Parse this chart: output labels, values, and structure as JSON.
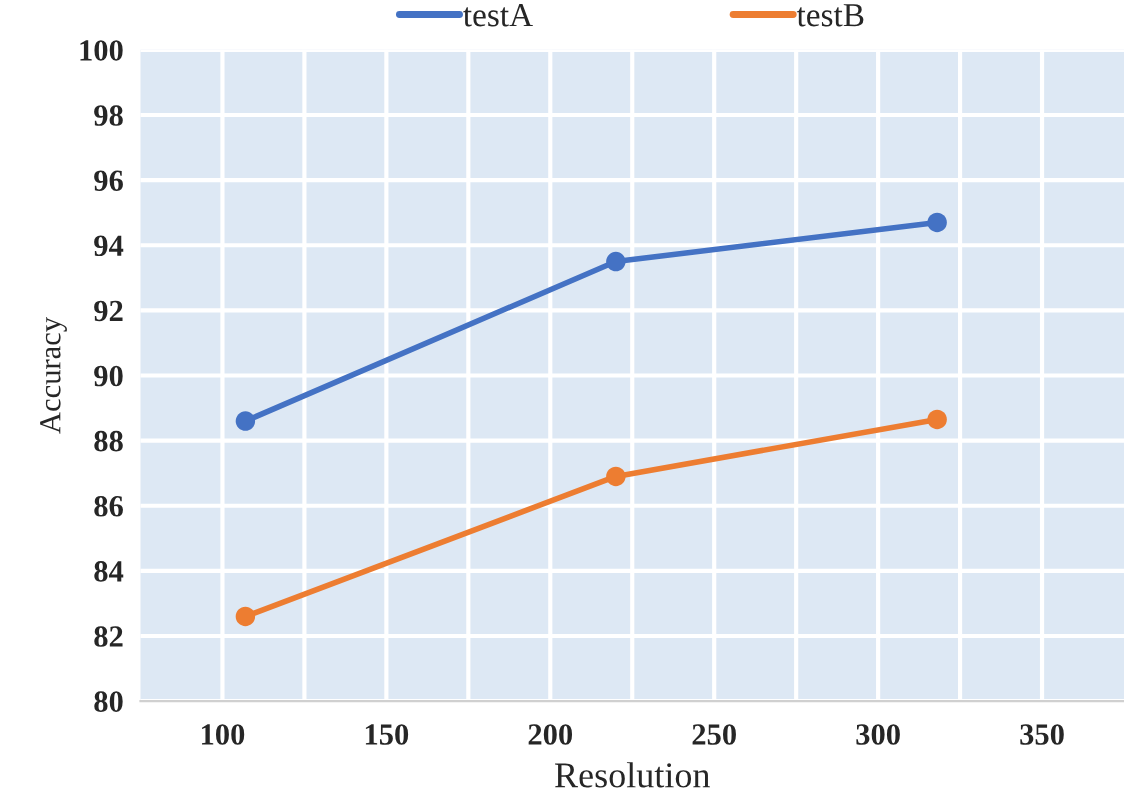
{
  "chart_data": {
    "type": "line",
    "xlabel": "Resolution",
    "ylabel": "Accuracy",
    "x": [
      107,
      220,
      318
    ],
    "series": [
      {
        "name": "testA",
        "color": "#4472c4",
        "values": [
          88.6,
          93.5,
          94.7
        ]
      },
      {
        "name": "testB",
        "color": "#ed7d31",
        "values": [
          82.6,
          86.9,
          88.65
        ]
      }
    ],
    "xlim": [
      75,
      375
    ],
    "xticks": [
      100,
      {
        "value": 125,
        "label": null
      },
      150,
      {
        "value": 175,
        "label": null
      },
      200,
      {
        "value": 225,
        "label": null
      },
      250,
      {
        "value": 275,
        "label": null
      },
      300,
      {
        "value": 325,
        "label": null
      },
      350
    ],
    "ylim": [
      80,
      100
    ],
    "yticks": [
      80,
      82,
      84,
      86,
      88,
      90,
      92,
      94,
      96,
      98,
      100
    ],
    "grid": true,
    "legend": "top",
    "marker": "circle",
    "line_style": "solid"
  }
}
